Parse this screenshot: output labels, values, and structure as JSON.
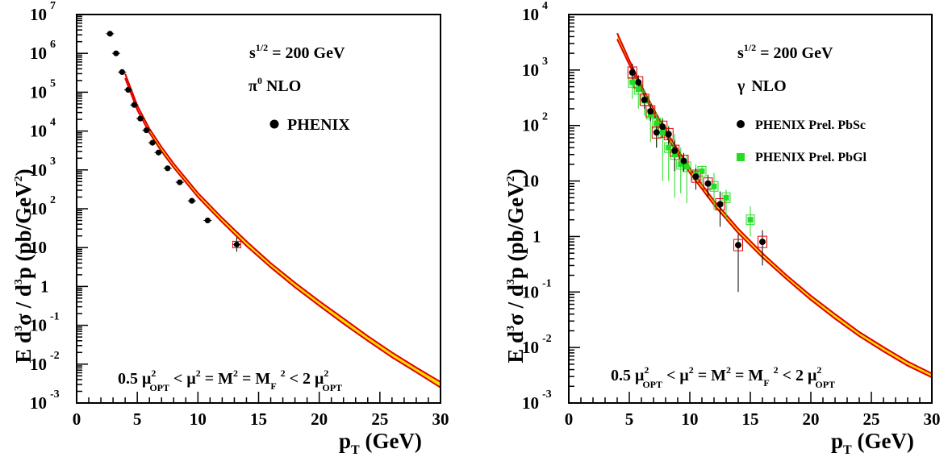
{
  "colors": {
    "band_edge": "#e00000",
    "band_fill": "#ffdd00",
    "phenix_point": "#000000",
    "pbsc_box": "#e00000",
    "pbgl_point": "#22dd22"
  },
  "chart_data": [
    {
      "type": "scatter",
      "panel": "left",
      "xlabel": {
        "base": "p",
        "sub": "T",
        "rest": " (GeV)"
      },
      "ylabel": {
        "a": "E d",
        "a_sup": "3",
        "b": "σ / d",
        "b_sup": "3",
        "c": "p (pb/GeV",
        "c_sup": "2",
        "d": ")"
      },
      "xlim": [
        0,
        30
      ],
      "ylim": [
        0.001,
        10000000
      ],
      "yscale": "log",
      "x_ticks": [
        "0",
        "5",
        "10",
        "15",
        "20",
        "25",
        "30"
      ],
      "y_tick_labels": [
        {
          "value": 0.001,
          "base": "10",
          "exp": "-3"
        },
        {
          "value": 0.01,
          "base": "10",
          "exp": "-2"
        },
        {
          "value": 0.1,
          "base": "10",
          "exp": "-1"
        },
        {
          "value": 1,
          "base": "1",
          "exp": ""
        },
        {
          "value": 10,
          "base": "10",
          "exp": ""
        },
        {
          "value": 100,
          "base": "10",
          "exp": "2"
        },
        {
          "value": 1000,
          "base": "10",
          "exp": "3"
        },
        {
          "value": 10000,
          "base": "10",
          "exp": "4"
        },
        {
          "value": 100000,
          "base": "10",
          "exp": "5"
        },
        {
          "value": 1000000,
          "base": "10",
          "exp": "6"
        },
        {
          "value": 10000000,
          "base": "10",
          "exp": "7"
        }
      ],
      "annotations": {
        "energy": {
          "base": "s",
          "sup": "1/2",
          "rest": " = 200 GeV"
        },
        "process": {
          "base": "π",
          "sup": "0",
          "rest": " NLO"
        },
        "scale": {
          "a": "0.5 μ",
          "a_sup": "2",
          "a_sub": "OPT",
          "b": " < μ",
          "b_sup": "2",
          "c": " = M",
          "c_sup": "2",
          "d": " = M",
          "d_sub": "F",
          "e": " ",
          "e_sup": "2",
          "f": " < 2 μ",
          "f_sup": "2",
          "f_sub": "OPT"
        }
      },
      "legend": [
        {
          "name": "PHENIX",
          "marker": "circle"
        }
      ],
      "series": [
        {
          "name": "PHENIX",
          "x": [
            2.75,
            3.25,
            3.75,
            4.25,
            4.75,
            5.25,
            5.75,
            6.25,
            6.75,
            7.5,
            8.5,
            9.5,
            10.8,
            13.2
          ],
          "y": [
            3200000,
            1000000,
            330000,
            115000,
            47000,
            21000,
            10500,
            5000,
            2800,
            1100,
            480,
            160,
            50,
            12
          ]
        },
        {
          "name": "NLO band",
          "x": [
            4,
            5,
            6,
            7,
            8,
            10,
            12,
            14,
            16,
            18,
            20,
            22,
            24,
            26,
            28,
            30
          ],
          "y_low": [
            230000,
            35000,
            9000,
            3000,
            1150,
            200,
            45,
            11,
            3.1,
            0.95,
            0.32,
            0.11,
            0.04,
            0.015,
            0.0062,
            0.0025
          ],
          "y_high": [
            300000,
            45000,
            11500,
            3900,
            1450,
            255,
            58,
            14.5,
            4,
            1.25,
            0.42,
            0.15,
            0.053,
            0.02,
            0.0082,
            0.0035
          ]
        }
      ]
    },
    {
      "type": "scatter",
      "panel": "right",
      "xlabel": {
        "base": "p",
        "sub": "T",
        "rest": " (GeV)"
      },
      "ylabel": {
        "a": "E d",
        "a_sup": "3",
        "b": "σ / d",
        "b_sup": "3",
        "c": "p (pb/GeV",
        "c_sup": "2",
        "d": ")"
      },
      "xlim": [
        0,
        30
      ],
      "ylim": [
        0.001,
        10000
      ],
      "yscale": "log",
      "x_ticks": [
        "0",
        "5",
        "10",
        "15",
        "20",
        "25",
        "30"
      ],
      "y_tick_labels": [
        {
          "value": 0.001,
          "base": "10",
          "exp": "-3"
        },
        {
          "value": 0.01,
          "base": "10",
          "exp": "-2"
        },
        {
          "value": 0.1,
          "base": "10",
          "exp": "-1"
        },
        {
          "value": 1,
          "base": "1",
          "exp": ""
        },
        {
          "value": 10,
          "base": "10",
          "exp": ""
        },
        {
          "value": 100,
          "base": "10",
          "exp": "2"
        },
        {
          "value": 1000,
          "base": "10",
          "exp": "3"
        },
        {
          "value": 10000,
          "base": "10",
          "exp": "4"
        }
      ],
      "annotations": {
        "energy": {
          "base": "s",
          "sup": "1/2",
          "rest": " = 200 GeV"
        },
        "process": {
          "base": "γ",
          "sup": "",
          "rest": " NLO"
        },
        "scale": {
          "a": "0.5 μ",
          "a_sup": "2",
          "a_sub": "OPT",
          "b": " < μ",
          "b_sup": "2",
          "c": " = M",
          "c_sup": "2",
          "d": " = M",
          "d_sub": "F",
          "e": " ",
          "e_sup": "2",
          "f": " < 2 μ",
          "f_sup": "2",
          "f_sub": "OPT"
        }
      },
      "legend": [
        {
          "name": "PHENIX Prel. PbSc",
          "marker": "circle"
        },
        {
          "name": "PHENIX Prel. PbGl",
          "marker": "square"
        }
      ],
      "series": [
        {
          "name": "PHENIX Prel. PbSc",
          "x": [
            5.25,
            5.75,
            6.25,
            6.75,
            7.25,
            7.75,
            8.25,
            8.75,
            9.5,
            10.5,
            11.5,
            12.5,
            14.0,
            16.0
          ],
          "y": [
            900,
            600,
            290,
            180,
            75,
            95,
            70,
            35,
            23,
            12,
            9,
            3.8,
            0.7,
            0.8
          ],
          "err_low": [
            600,
            400,
            200,
            120,
            40,
            60,
            45,
            15,
            15,
            7,
            5,
            1.5,
            0.1,
            0.3
          ],
          "err_high": [
            1300,
            800,
            380,
            240,
            110,
            130,
            95,
            55,
            32,
            17,
            13,
            6.5,
            1.1,
            1.3
          ]
        },
        {
          "name": "PHENIX Prel. PbGl",
          "x": [
            5.25,
            5.75,
            6.25,
            6.75,
            7.25,
            7.75,
            8.25,
            8.75,
            9.25,
            9.75,
            10.5,
            11.0,
            12.0,
            13.0,
            15.0
          ],
          "y": [
            600,
            450,
            280,
            160,
            110,
            75,
            40,
            30,
            20,
            18,
            13,
            15,
            8,
            5,
            2
          ],
          "err_low": [
            300,
            200,
            150,
            50,
            40,
            10,
            10,
            5,
            6,
            4,
            7,
            8,
            3,
            2,
            1
          ],
          "err_high": [
            950,
            800,
            450,
            260,
            170,
            140,
            100,
            70,
            40,
            30,
            20,
            19,
            14,
            7,
            3.5
          ]
        },
        {
          "name": "NLO band",
          "x": [
            4,
            5,
            6,
            7,
            8,
            10,
            12,
            14,
            16,
            18,
            20,
            22,
            24,
            26,
            28,
            30
          ],
          "y_low": [
            3600,
            1250,
            440,
            165,
            67,
            14,
            3.7,
            1.15,
            0.42,
            0.17,
            0.072,
            0.033,
            0.016,
            0.0085,
            0.0047,
            0.0029
          ],
          "y_high": [
            4600,
            1500,
            520,
            200,
            81,
            17,
            4.4,
            1.38,
            0.5,
            0.2,
            0.086,
            0.04,
            0.019,
            0.0102,
            0.0056,
            0.0034
          ]
        }
      ]
    }
  ]
}
